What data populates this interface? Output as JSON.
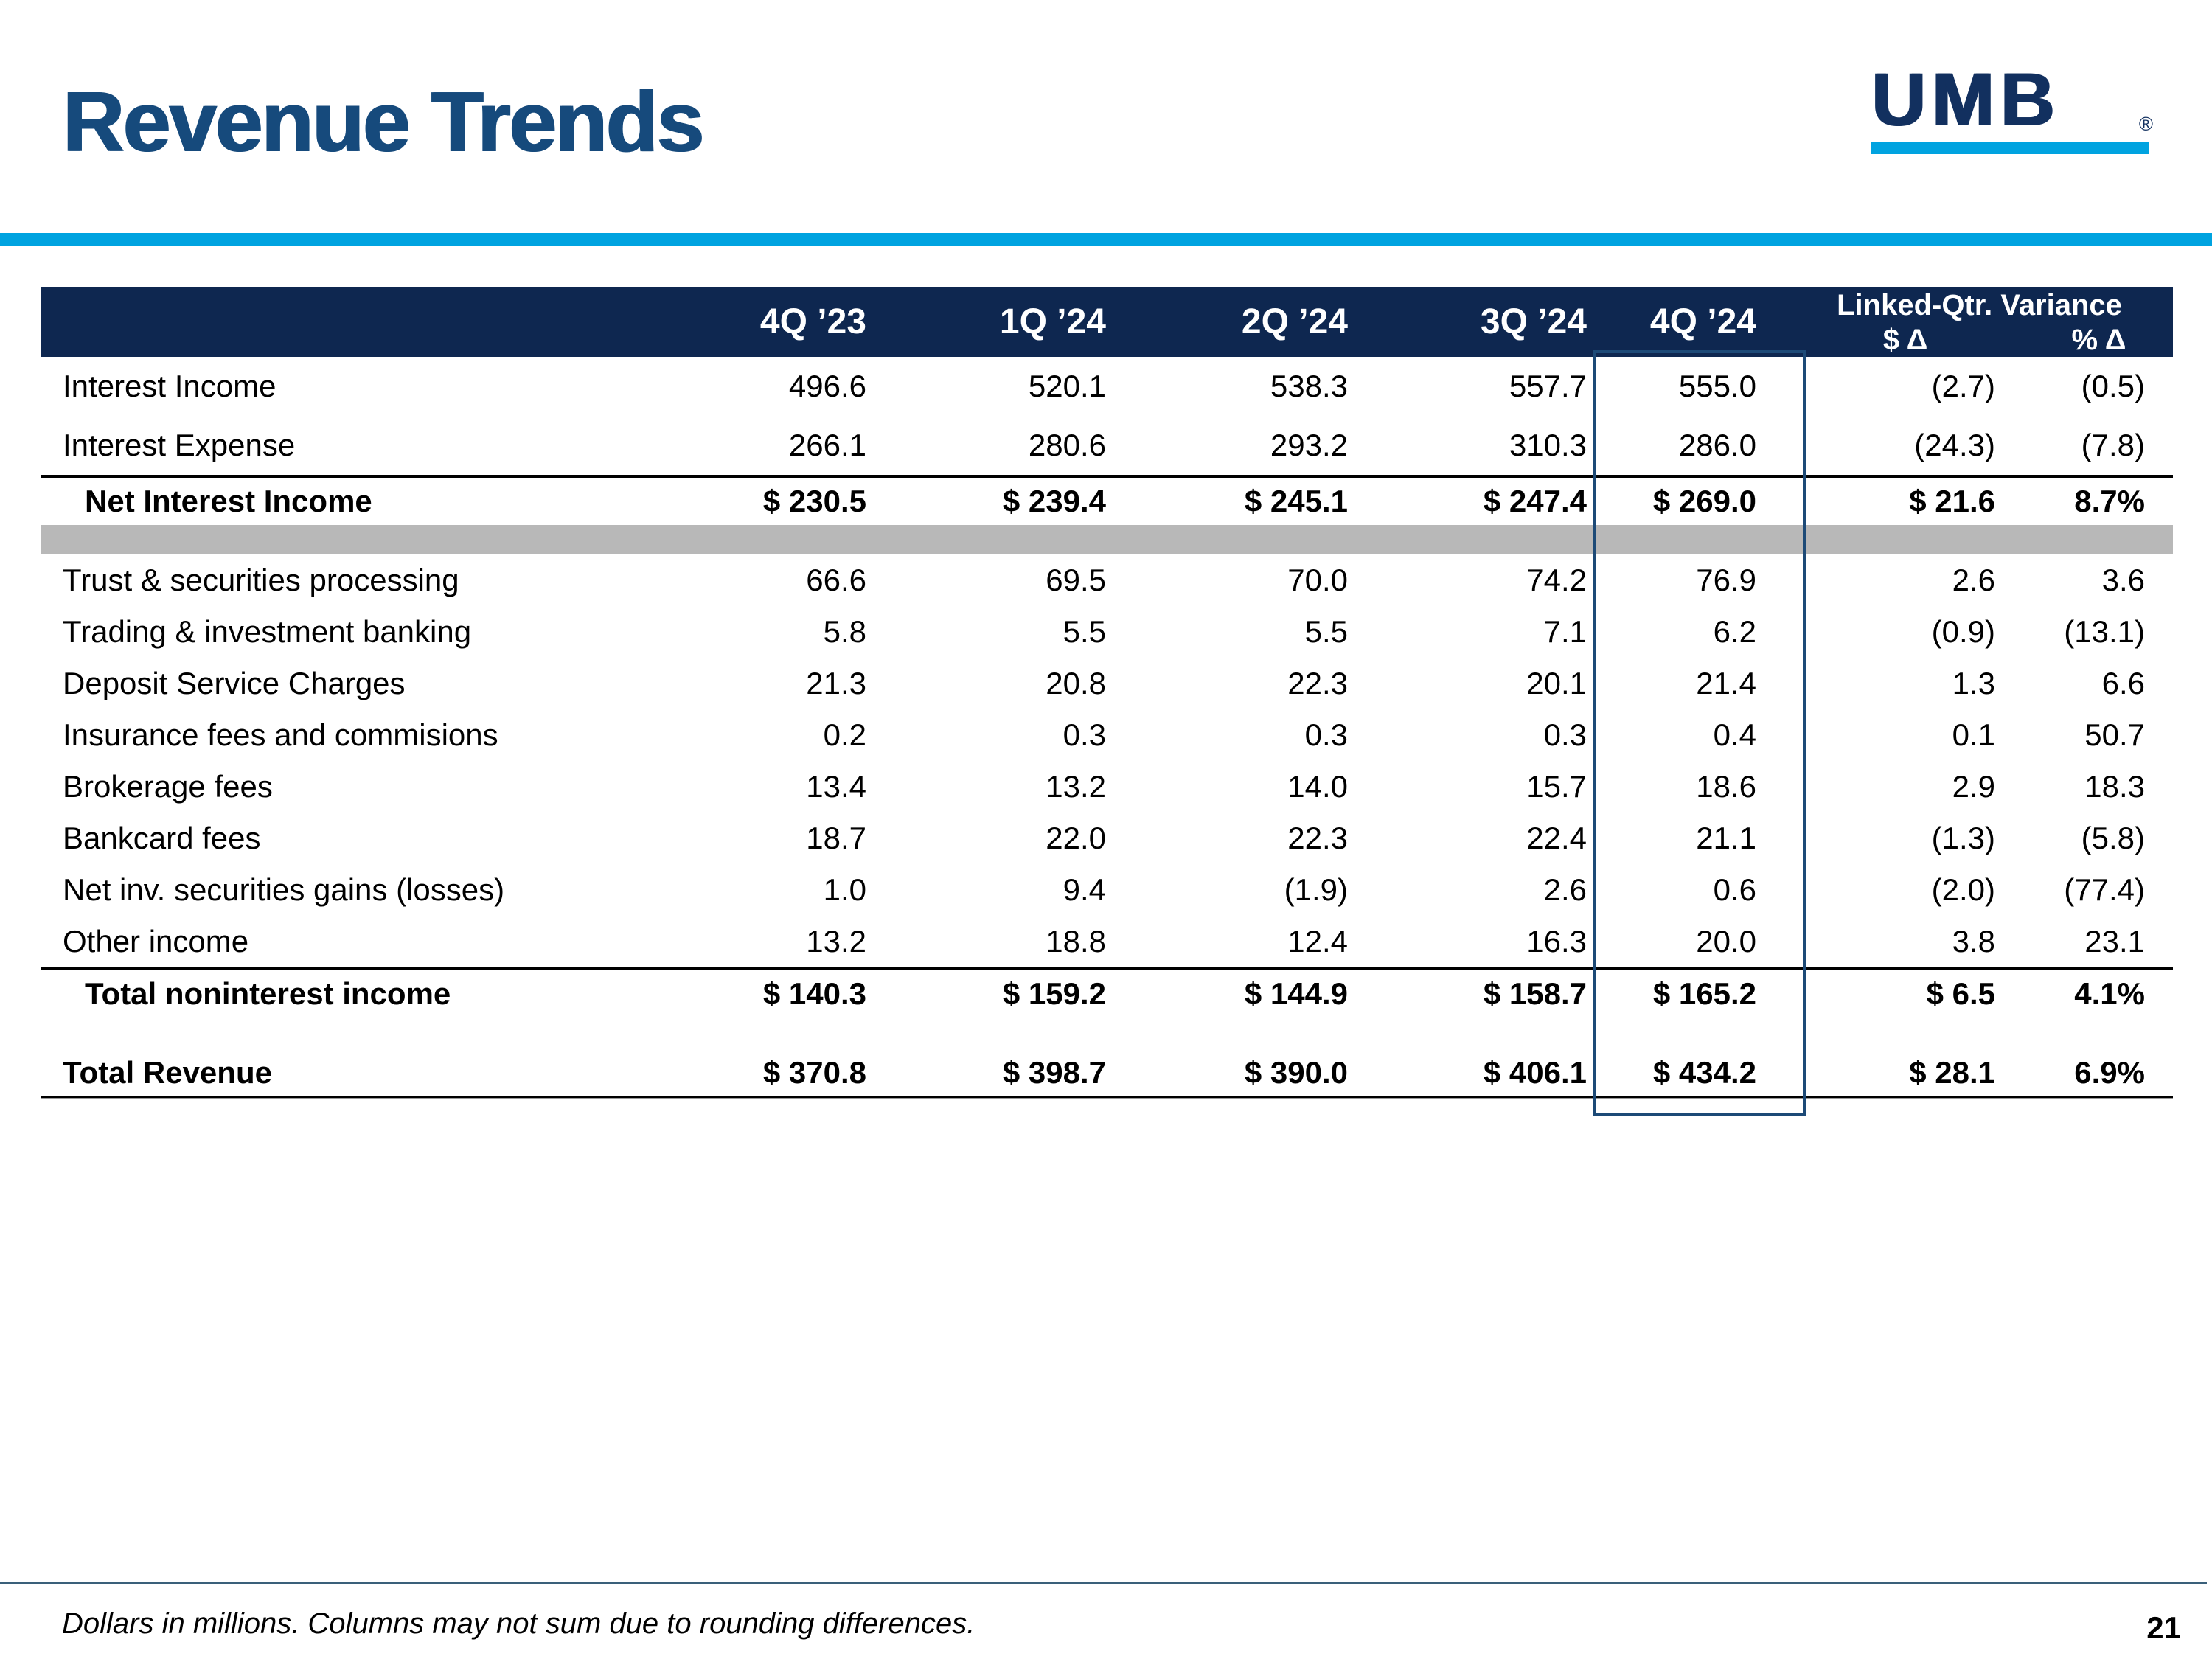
{
  "slide": {
    "title": "Revenue Trends",
    "page_number": "21",
    "footnote": "Dollars in millions. Columns may not sum due to rounding differences.",
    "logo": {
      "text": "UMB",
      "registered": "®"
    }
  },
  "colors": {
    "header_navy": "#0e2750",
    "title_blue": "#164a7c",
    "brand_light_blue": "#00a3e0",
    "gray_band": "#b8b8b8",
    "highlight_box_border": "#1d4a77",
    "footer_rule": "#3a607a"
  },
  "table": {
    "columns": [
      "",
      "4Q ’23",
      "1Q ’24",
      "2Q ’24",
      "3Q ’24",
      "4Q ’24"
    ],
    "variance_header": {
      "title": "Linked-Qtr. Variance",
      "dollar_delta": "$ Δ",
      "percent_delta": "% Δ"
    },
    "rows": [
      {
        "type": "data",
        "label": "Interest Income",
        "values": [
          "496.6",
          "520.1",
          "538.3",
          "557.7",
          "555.0",
          "(2.7)",
          "(0.5)"
        ]
      },
      {
        "type": "data",
        "label": "Interest Expense",
        "values": [
          "266.1",
          "280.6",
          "293.2",
          "310.3",
          "286.0",
          "(24.3)",
          "(7.8)"
        ]
      },
      {
        "type": "subtotal",
        "rule_above": true,
        "label": "Net Interest Income",
        "values": [
          "$ 230.5",
          "$ 239.4",
          "$ 245.1",
          "$ 247.4",
          "$ 269.0",
          "$ 21.6",
          "8.7%"
        ]
      },
      {
        "type": "grayband"
      },
      {
        "type": "data",
        "label": "Trust & securities processing",
        "values": [
          "66.6",
          "69.5",
          "70.0",
          "74.2",
          "76.9",
          "2.6",
          "3.6"
        ]
      },
      {
        "type": "data",
        "label": "Trading & investment banking",
        "values": [
          "5.8",
          "5.5",
          "5.5",
          "7.1",
          "6.2",
          "(0.9)",
          "(13.1)"
        ]
      },
      {
        "type": "data",
        "label": "Deposit Service Charges",
        "values": [
          "21.3",
          "20.8",
          "22.3",
          "20.1",
          "21.4",
          "1.3",
          "6.6"
        ]
      },
      {
        "type": "data",
        "label": "Insurance fees and commisions",
        "values": [
          "0.2",
          "0.3",
          "0.3",
          "0.3",
          "0.4",
          "0.1",
          "50.7"
        ]
      },
      {
        "type": "data",
        "label": "Brokerage fees",
        "values": [
          "13.4",
          "13.2",
          "14.0",
          "15.7",
          "18.6",
          "2.9",
          "18.3"
        ]
      },
      {
        "type": "data",
        "label": "Bankcard fees",
        "values": [
          "18.7",
          "22.0",
          "22.3",
          "22.4",
          "21.1",
          "(1.3)",
          "(5.8)"
        ]
      },
      {
        "type": "data",
        "label": "Net inv. securities gains (losses)",
        "values": [
          "1.0",
          "9.4",
          "(1.9)",
          "2.6",
          "0.6",
          "(2.0)",
          "(77.4)"
        ]
      },
      {
        "type": "data",
        "label": "Other income",
        "values": [
          "13.2",
          "18.8",
          "12.4",
          "16.3",
          "20.0",
          "3.8",
          "23.1"
        ]
      },
      {
        "type": "subtotal",
        "rule_above": true,
        "label": "Total noninterest income",
        "values": [
          "$ 140.3",
          "$ 159.2",
          "$ 144.9",
          "$ 158.7",
          "$ 165.2",
          "$ 6.5",
          "4.1%"
        ]
      },
      {
        "type": "spacer"
      },
      {
        "type": "total",
        "label": "Total Revenue",
        "values": [
          "$ 370.8",
          "$ 398.7",
          "$ 390.0",
          "$ 406.1",
          "$ 434.2",
          "$ 28.1",
          "6.9%"
        ]
      }
    ]
  }
}
